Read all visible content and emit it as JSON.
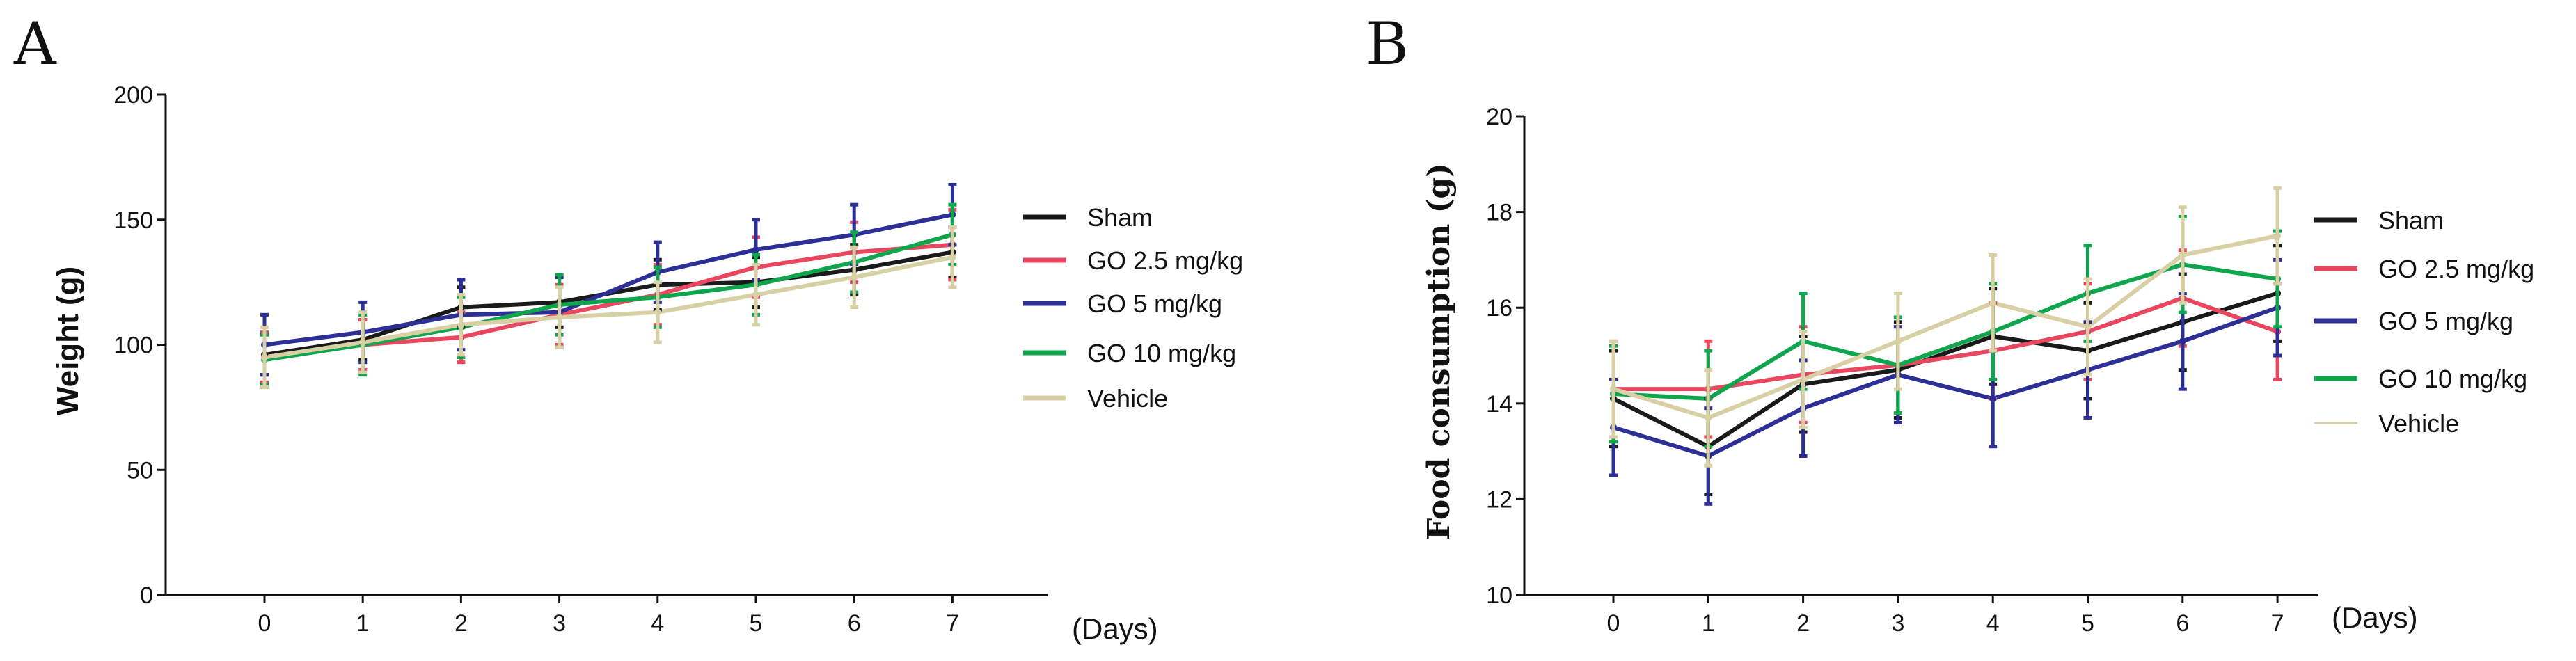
{
  "chart_data": [
    {
      "panel": "A",
      "type": "line",
      "title": "",
      "xlabel": "(Days)",
      "ylabel": "Weight (g)",
      "x": [
        0,
        1,
        2,
        3,
        4,
        5,
        6,
        7
      ],
      "ylim": [
        0,
        200
      ],
      "yticks": [
        0,
        50,
        100,
        150,
        200
      ],
      "series": [
        {
          "name": "Sham",
          "color": "#1a1a1a",
          "values": [
            96,
            102,
            115,
            117,
            124,
            125,
            130,
            137
          ],
          "err": [
            8,
            8,
            8,
            10,
            10,
            10,
            10,
            10
          ]
        },
        {
          "name": "GO 2.5 mg/kg",
          "color": "#e8475f",
          "values": [
            95,
            100,
            103,
            112,
            120,
            131,
            137,
            140
          ],
          "err": [
            10,
            10,
            10,
            12,
            12,
            12,
            12,
            14
          ]
        },
        {
          "name": "GO 5 mg/kg",
          "color": "#2b2f96",
          "values": [
            100,
            105,
            112,
            113,
            129,
            138,
            144,
            152
          ],
          "err": [
            12,
            12,
            14,
            14,
            12,
            12,
            12,
            12
          ]
        },
        {
          "name": "GO 10 mg/kg",
          "color": "#0ea54c",
          "values": [
            94,
            100,
            107,
            116,
            119,
            124,
            133,
            144
          ],
          "err": [
            10,
            12,
            12,
            12,
            12,
            12,
            12,
            12
          ]
        },
        {
          "name": "Vehicle",
          "color": "#d8cfa4",
          "values": [
            95,
            101,
            108,
            111,
            113,
            120,
            127,
            135
          ],
          "err": [
            12,
            12,
            12,
            12,
            12,
            12,
            12,
            12
          ]
        }
      ]
    },
    {
      "panel": "B",
      "type": "line",
      "title": "",
      "xlabel": "(Days)",
      "ylabel": "Food consumption (g)",
      "x": [
        0,
        1,
        2,
        3,
        4,
        5,
        6,
        7
      ],
      "ylim": [
        10,
        20
      ],
      "yticks": [
        10,
        12,
        14,
        16,
        18,
        20
      ],
      "series": [
        {
          "name": "Sham",
          "color": "#1a1a1a",
          "values": [
            14.1,
            13.1,
            14.4,
            14.7,
            15.4,
            15.1,
            15.7,
            16.3
          ],
          "err": [
            1.0,
            1.0,
            1.0,
            1.0,
            1.0,
            1.0,
            1.0,
            1.0
          ]
        },
        {
          "name": "GO 2.5 mg/kg",
          "color": "#e8475f",
          "values": [
            14.3,
            14.3,
            14.6,
            14.8,
            15.1,
            15.5,
            16.2,
            15.5
          ],
          "err": [
            1.0,
            1.0,
            1.0,
            1.0,
            1.0,
            1.0,
            1.0,
            1.0
          ]
        },
        {
          "name": "GO 5 mg/kg",
          "color": "#2b2f96",
          "values": [
            13.5,
            12.9,
            13.9,
            14.6,
            14.1,
            14.7,
            15.3,
            16.0
          ],
          "err": [
            1.0,
            1.0,
            1.0,
            1.0,
            1.0,
            1.0,
            1.0,
            1.0
          ]
        },
        {
          "name": "GO 10 mg/kg",
          "color": "#0ea54c",
          "values": [
            14.2,
            14.1,
            15.3,
            14.8,
            15.5,
            16.3,
            16.9,
            16.6
          ],
          "err": [
            1.0,
            1.0,
            1.0,
            1.0,
            1.0,
            1.0,
            1.0,
            1.0
          ]
        },
        {
          "name": "Vehicle",
          "color": "#d8cfa4",
          "values": [
            14.3,
            13.7,
            14.5,
            15.3,
            16.1,
            15.6,
            17.1,
            17.5
          ],
          "err": [
            1.0,
            1.0,
            1.0,
            1.0,
            1.0,
            1.0,
            1.0,
            1.0
          ]
        }
      ]
    }
  ]
}
